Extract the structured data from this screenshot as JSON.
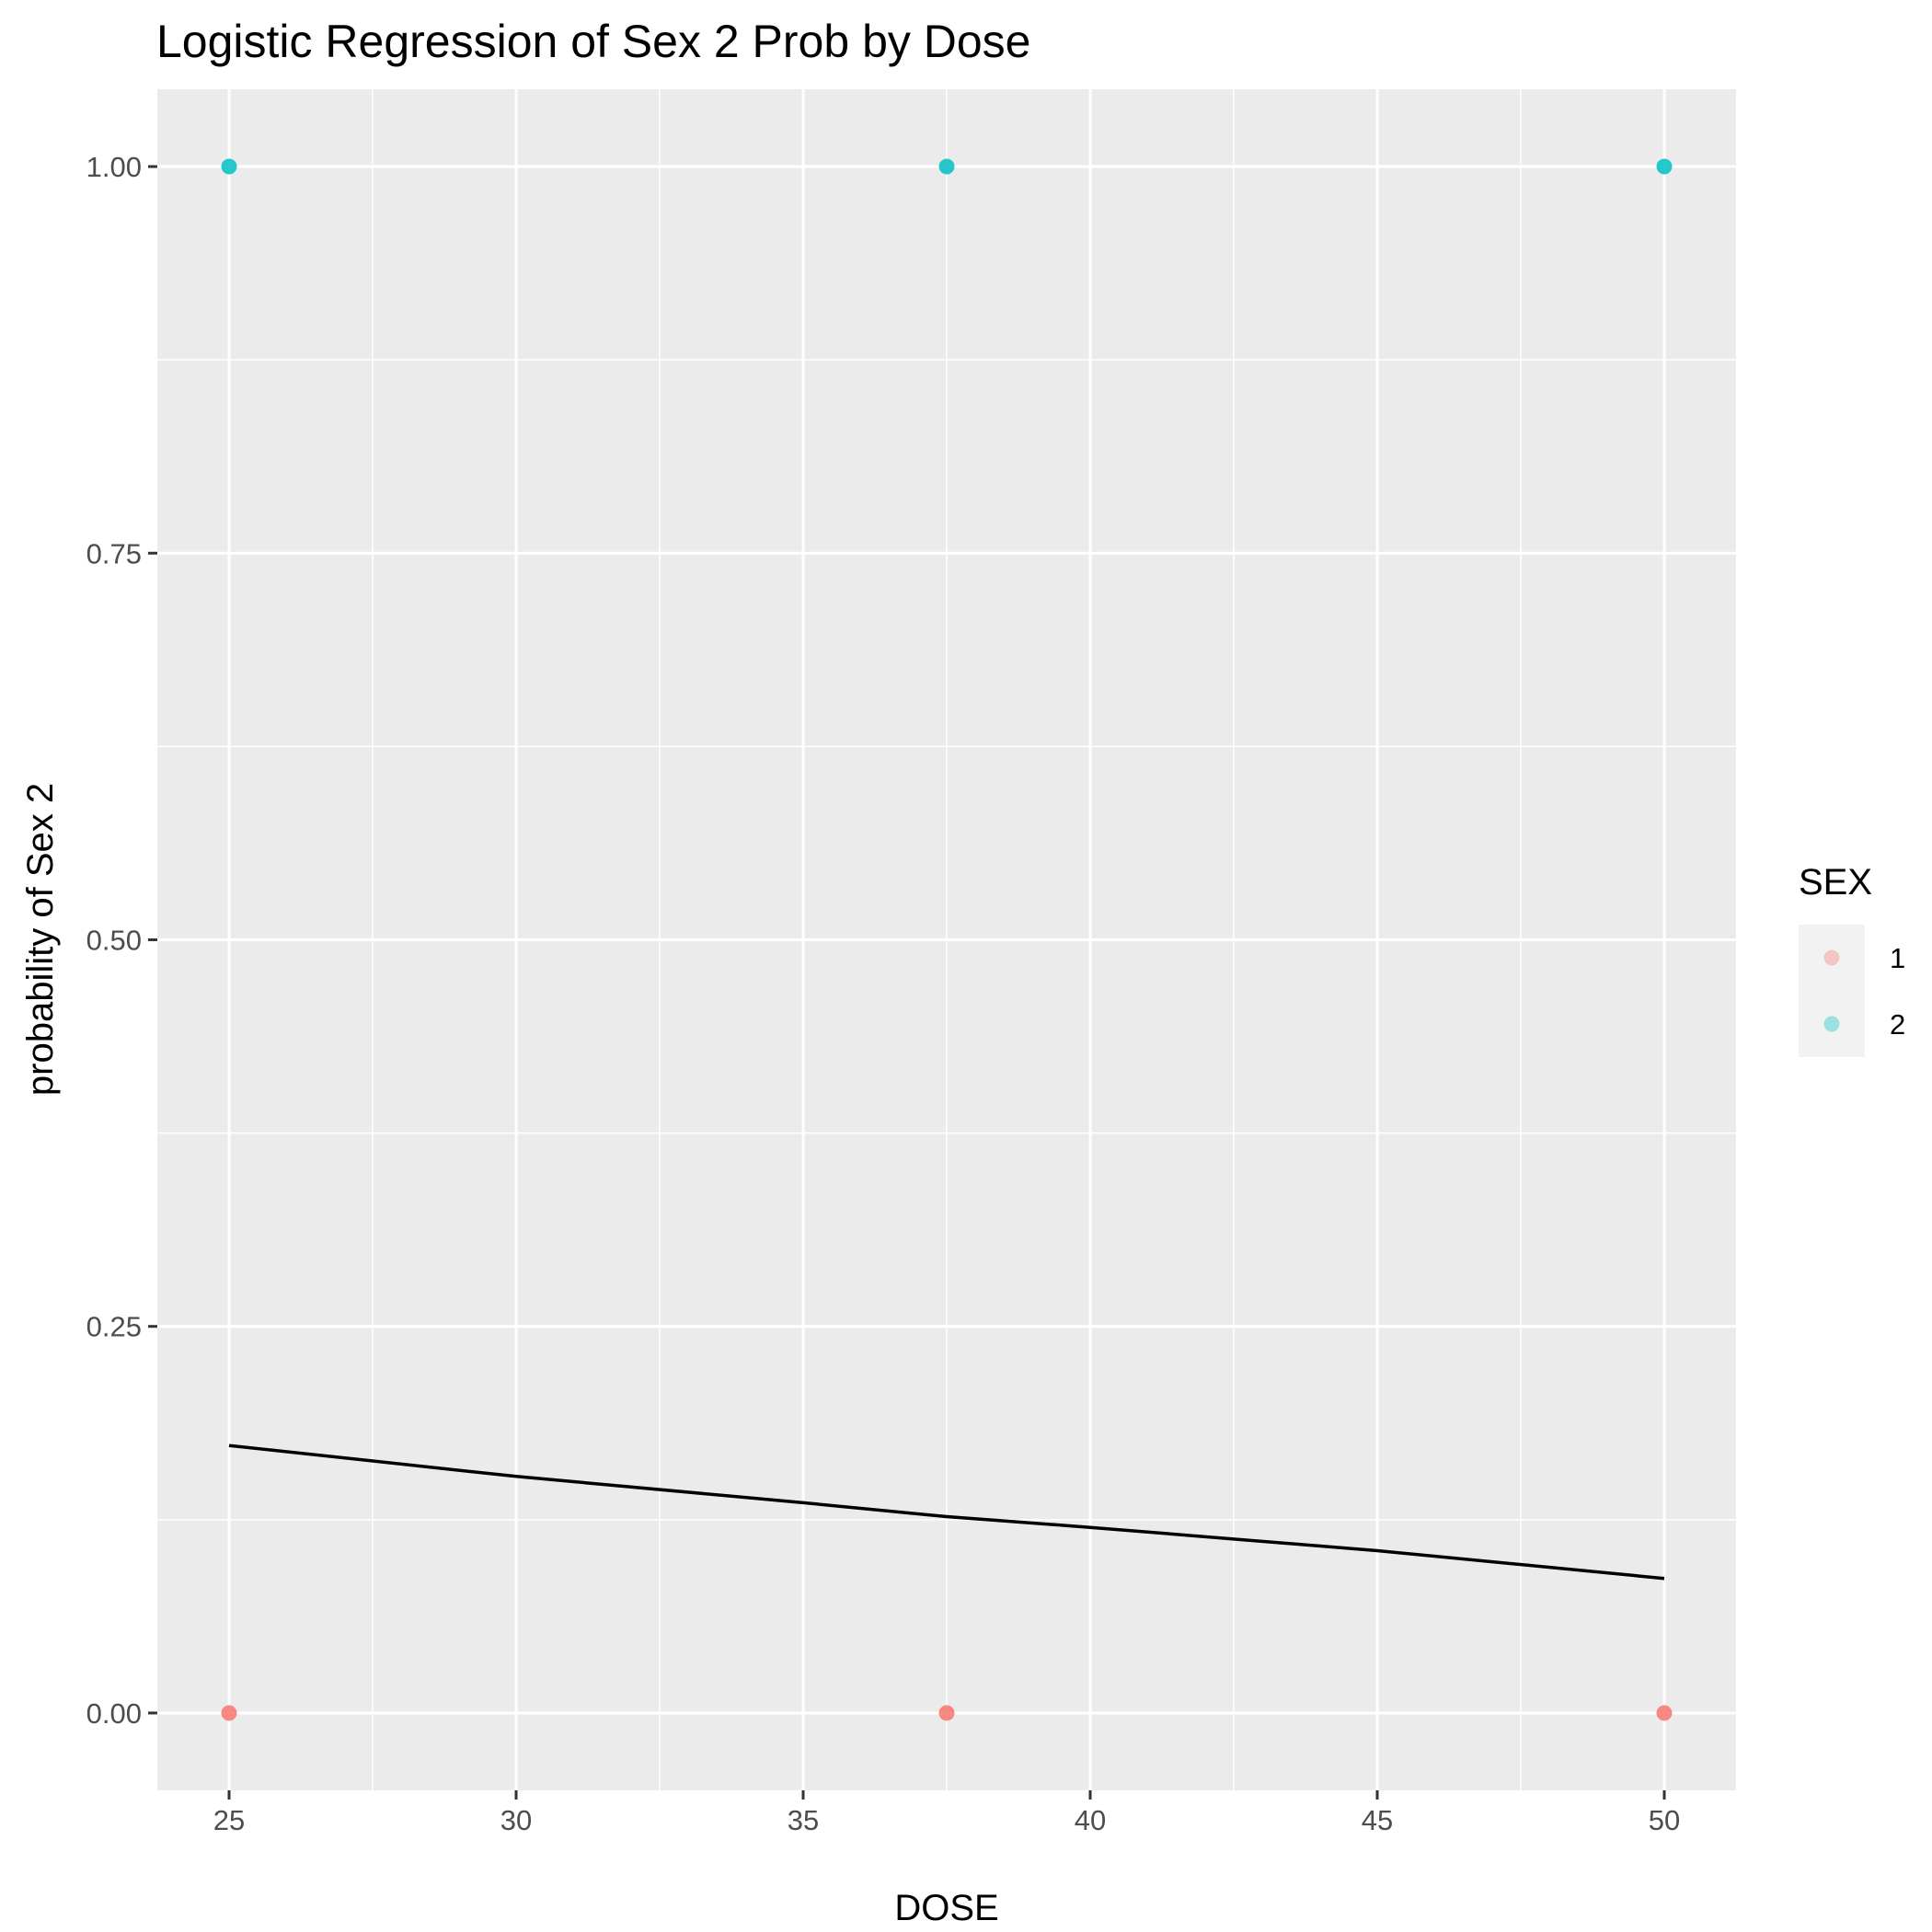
{
  "chart_data": {
    "type": "scatter",
    "title": "Logistic Regression of Sex 2 Prob by Dose",
    "xlabel": "DOSE",
    "ylabel": "probability of Sex 2",
    "xlim": [
      23.75,
      51.25
    ],
    "ylim": [
      -0.05,
      1.05
    ],
    "x_ticks": [
      25,
      30,
      35,
      40,
      45,
      50
    ],
    "x_tick_labels": [
      "25",
      "30",
      "35",
      "40",
      "45",
      "50"
    ],
    "y_ticks": [
      0,
      0.25,
      0.5,
      0.75,
      1
    ],
    "y_tick_labels": [
      "0.00",
      "0.25",
      "0.50",
      "0.75",
      "1.00"
    ],
    "grid": true,
    "legend": {
      "title": "SEX",
      "position": "right",
      "entries": [
        {
          "label": "1",
          "color": "#F8766D"
        },
        {
          "label": "2",
          "color": "#00BFC4"
        }
      ]
    },
    "series": [
      {
        "name": "1",
        "color": "#F8766D",
        "points": [
          {
            "x": 25,
            "y": 0
          },
          {
            "x": 37.5,
            "y": 0
          },
          {
            "x": 50,
            "y": 0
          }
        ]
      },
      {
        "name": "2",
        "color": "#00BFC4",
        "points": [
          {
            "x": 25,
            "y": 1
          },
          {
            "x": 37.5,
            "y": 1
          },
          {
            "x": 50,
            "y": 1
          }
        ]
      }
    ],
    "fit_line": {
      "type": "line",
      "color": "#000000",
      "x": [
        25,
        30,
        35,
        37.5,
        40,
        45,
        50
      ],
      "y": [
        0.173,
        0.153,
        0.136,
        0.127,
        0.12,
        0.105,
        0.087
      ]
    },
    "colors": {
      "panel_background": "#EBEBEB",
      "grid": "#FFFFFF",
      "legend_key_background": "#F2F2F2"
    }
  }
}
